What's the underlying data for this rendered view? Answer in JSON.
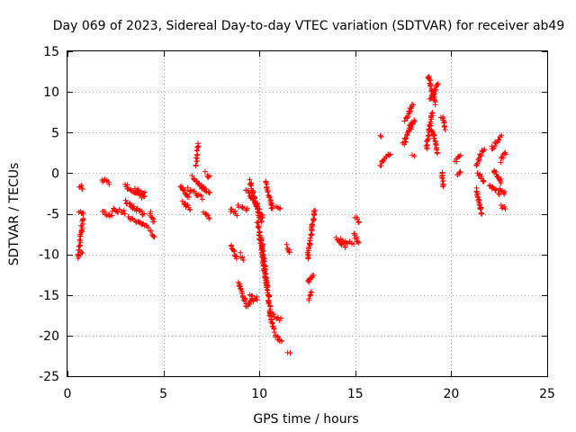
{
  "chart_data": {
    "type": "scatter",
    "title": "Day 069 of 2023, Sidereal Day-to-day VTEC variation (SDTVAR) for receiver ab49",
    "xlabel": "GPS time / hours",
    "ylabel": "SDTVAR / TECUs",
    "xlim": [
      0,
      25
    ],
    "ylim": [
      -25,
      15
    ],
    "xticks": [
      0,
      5,
      10,
      15,
      20,
      25
    ],
    "yticks": [
      -25,
      -20,
      -15,
      -10,
      -5,
      0,
      5,
      10,
      15
    ],
    "xtick_labels": [
      "0",
      "5",
      "10",
      "15",
      "20",
      "25"
    ],
    "ytick_labels": [
      "-25",
      "-20",
      "-15",
      "-10",
      "-5",
      "0",
      "5",
      "10",
      "15"
    ],
    "grid": true,
    "marker": "plus",
    "series_color": "#ff0000",
    "segments": [
      {
        "x": [
          0.55,
          0.8
        ],
        "y": [
          -10.5,
          -5.5
        ]
      },
      {
        "x": [
          0.6,
          0.8
        ],
        "y": [
          -10.0,
          -9.8
        ]
      },
      {
        "x": [
          0.65,
          0.8
        ],
        "y": [
          -1.5,
          -2.0
        ]
      },
      {
        "x": [
          0.6,
          0.8
        ],
        "y": [
          -4.6,
          -5.0
        ]
      },
      {
        "x": [
          1.8,
          2.2
        ],
        "y": [
          -0.8,
          -1.2
        ]
      },
      {
        "x": [
          1.8,
          2.3
        ],
        "y": [
          -4.8,
          -5.2
        ]
      },
      {
        "x": [
          2.3,
          3.0
        ],
        "y": [
          -4.5,
          -4.8
        ]
      },
      {
        "x": [
          3.0,
          4.0
        ],
        "y": [
          -1.5,
          -3.0
        ]
      },
      {
        "x": [
          3.0,
          4.0
        ],
        "y": [
          -3.5,
          -5.0
        ]
      },
      {
        "x": [
          3.2,
          4.2
        ],
        "y": [
          -5.5,
          -6.5
        ]
      },
      {
        "x": [
          3.5,
          4.0
        ],
        "y": [
          -2.0,
          -2.5
        ]
      },
      {
        "x": [
          4.3,
          4.5
        ],
        "y": [
          -4.8,
          -6.0
        ]
      },
      {
        "x": [
          4.3,
          4.5
        ],
        "y": [
          -7.2,
          -7.8
        ]
      },
      {
        "x": [
          5.9,
          6.3
        ],
        "y": [
          -1.5,
          -3.0
        ]
      },
      {
        "x": [
          6.0,
          6.4
        ],
        "y": [
          -3.5,
          -4.5
        ]
      },
      {
        "x": [
          6.3,
          7.0
        ],
        "y": [
          -2.0,
          -3.0
        ]
      },
      {
        "x": [
          6.5,
          7.1
        ],
        "y": [
          -0.5,
          -2.0
        ]
      },
      {
        "x": [
          6.7,
          6.8
        ],
        "y": [
          1.0,
          3.5
        ]
      },
      {
        "x": [
          7.0,
          7.4
        ],
        "y": [
          -1.5,
          -2.5
        ]
      },
      {
        "x": [
          7.1,
          7.4
        ],
        "y": [
          -5.0,
          -5.5
        ]
      },
      {
        "x": [
          7.2,
          7.4
        ],
        "y": [
          0.0,
          -0.5
        ]
      },
      {
        "x": [
          8.5,
          8.8
        ],
        "y": [
          -4.5,
          -5.0
        ]
      },
      {
        "x": [
          8.5,
          8.8
        ],
        "y": [
          -9.0,
          -10.5
        ]
      },
      {
        "x": [
          8.9,
          9.4
        ],
        "y": [
          -4.0,
          -4.5
        ]
      },
      {
        "x": [
          8.9,
          9.3
        ],
        "y": [
          -13.5,
          -16.0
        ]
      },
      {
        "x": [
          9.3,
          9.7
        ],
        "y": [
          -16.5,
          -15.5
        ]
      },
      {
        "x": [
          9.5,
          9.9
        ],
        "y": [
          -15.0,
          -15.5
        ]
      },
      {
        "x": [
          9.0,
          9.2
        ],
        "y": [
          -10.0,
          -10.5
        ]
      },
      {
        "x": [
          9.3,
          9.9
        ],
        "y": [
          -2.0,
          -4.0
        ]
      },
      {
        "x": [
          9.5,
          10.1
        ],
        "y": [
          -1.0,
          -6.0
        ]
      },
      {
        "x": [
          9.6,
          10.2
        ],
        "y": [
          -3.0,
          -5.5
        ]
      },
      {
        "x": [
          9.9,
          10.4
        ],
        "y": [
          -6.0,
          -14.0
        ]
      },
      {
        "x": [
          10.1,
          10.6
        ],
        "y": [
          -8.0,
          -17.5
        ]
      },
      {
        "x": [
          10.3,
          10.7
        ],
        "y": [
          -1.0,
          -4.5
        ]
      },
      {
        "x": [
          10.5,
          10.8
        ],
        "y": [
          -17.0,
          -19.5
        ]
      },
      {
        "x": [
          10.7,
          11.1
        ],
        "y": [
          -17.5,
          -18.0
        ]
      },
      {
        "x": [
          10.8,
          11.2
        ],
        "y": [
          -20.0,
          -20.7
        ]
      },
      {
        "x": [
          10.9,
          11.1
        ],
        "y": [
          -4.0,
          -4.5
        ]
      },
      {
        "x": [
          11.4,
          11.6
        ],
        "y": [
          -9.0,
          -9.8
        ]
      },
      {
        "x": [
          11.5,
          11.6
        ],
        "y": [
          -22.3,
          -22.3
        ]
      },
      {
        "x": [
          12.5,
          12.9
        ],
        "y": [
          -10.5,
          -4.5
        ]
      },
      {
        "x": [
          12.5,
          12.8
        ],
        "y": [
          -13.5,
          -12.5
        ]
      },
      {
        "x": [
          12.6,
          12.7
        ],
        "y": [
          -15.5,
          -14.5
        ]
      },
      {
        "x": [
          14.0,
          14.5
        ],
        "y": [
          -8.0,
          -9.0
        ]
      },
      {
        "x": [
          14.2,
          14.9
        ],
        "y": [
          -8.2,
          -8.8
        ]
      },
      {
        "x": [
          14.9,
          15.2
        ],
        "y": [
          -7.5,
          -8.5
        ]
      },
      {
        "x": [
          15.0,
          15.2
        ],
        "y": [
          -5.5,
          -6.0
        ]
      },
      {
        "x": [
          16.3,
          16.4
        ],
        "y": [
          4.6,
          4.6
        ]
      },
      {
        "x": [
          16.3,
          16.8
        ],
        "y": [
          1.0,
          2.5
        ]
      },
      {
        "x": [
          17.5,
          17.9
        ],
        "y": [
          3.5,
          6.0
        ]
      },
      {
        "x": [
          17.6,
          18.0
        ],
        "y": [
          6.5,
          8.5
        ]
      },
      {
        "x": [
          17.9,
          18.1
        ],
        "y": [
          5.5,
          6.5
        ]
      },
      {
        "x": [
          18.0,
          18.1
        ],
        "y": [
          2.0,
          2.0
        ]
      },
      {
        "x": [
          18.7,
          19.0
        ],
        "y": [
          3.0,
          7.5
        ]
      },
      {
        "x": [
          18.8,
          19.2
        ],
        "y": [
          12.0,
          8.5
        ]
      },
      {
        "x": [
          18.9,
          19.3
        ],
        "y": [
          9.0,
          11.0
        ]
      },
      {
        "x": [
          19.0,
          19.3
        ],
        "y": [
          5.5,
          2.5
        ]
      },
      {
        "x": [
          19.5,
          19.7
        ],
        "y": [
          7.0,
          5.5
        ]
      },
      {
        "x": [
          19.5,
          19.6
        ],
        "y": [
          0.2,
          -1.7
        ]
      },
      {
        "x": [
          20.2,
          20.5
        ],
        "y": [
          1.5,
          2.0
        ]
      },
      {
        "x": [
          20.3,
          20.5
        ],
        "y": [
          -0.2,
          0.2
        ]
      },
      {
        "x": [
          21.3,
          21.7
        ],
        "y": [
          1.0,
          3.0
        ]
      },
      {
        "x": [
          21.3,
          21.6
        ],
        "y": [
          -2.0,
          -5.0
        ]
      },
      {
        "x": [
          21.4,
          21.7
        ],
        "y": [
          0.0,
          -1.0
        ]
      },
      {
        "x": [
          22.0,
          22.5
        ],
        "y": [
          -1.5,
          -2.5
        ]
      },
      {
        "x": [
          22.1,
          22.6
        ],
        "y": [
          3.0,
          4.5
        ]
      },
      {
        "x": [
          22.2,
          22.6
        ],
        "y": [
          0.5,
          -1.0
        ]
      },
      {
        "x": [
          22.5,
          22.8
        ],
        "y": [
          -2.0,
          -2.5
        ]
      },
      {
        "x": [
          22.6,
          22.8
        ],
        "y": [
          -4.0,
          -4.5
        ]
      },
      {
        "x": [
          22.6,
          22.8
        ],
        "y": [
          1.5,
          2.5
        ]
      }
    ]
  }
}
